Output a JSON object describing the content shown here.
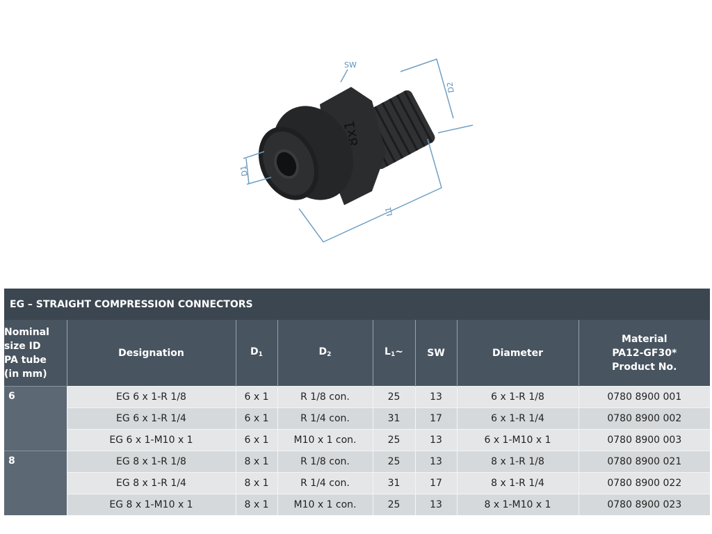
{
  "product_image": {
    "labels": {
      "sw": "SW",
      "d1": "D1",
      "d2": "D2",
      "l1": "L1",
      "marking": "8x1"
    },
    "dimension_color": "#5b8fb8",
    "body_color": "#2a2b2d"
  },
  "table": {
    "title": "EG – STRAIGHT COMPRESSION CONNECTORS",
    "headers": {
      "nominal": [
        "Nominal",
        "size ID",
        "PA tube",
        "(in mm)"
      ],
      "designation": "Designation",
      "d1": {
        "base": "D",
        "sub": "1"
      },
      "d2": {
        "base": "D",
        "sub": "2"
      },
      "l1": {
        "base": "L",
        "sub": "1",
        "suffix": "~"
      },
      "sw": "SW",
      "diameter": "Diameter",
      "material": [
        "Material",
        "PA12-GF30*",
        "Product No."
      ]
    },
    "groups": [
      {
        "size": "6",
        "rows": [
          {
            "designation": "EG 6 x 1-R 1/8",
            "d1": "6 x 1",
            "d2": "R 1/8 con.",
            "l1": "25",
            "sw": "13",
            "diameter": "6 x 1-R 1/8",
            "product_no": "0780 8900 001"
          },
          {
            "designation": "EG 6 x 1-R 1/4",
            "d1": "6 x 1",
            "d2": "R 1/4 con.",
            "l1": "31",
            "sw": "17",
            "diameter": "6 x 1-R 1/4",
            "product_no": "0780 8900 002"
          },
          {
            "designation": "EG 6 x 1-M10 x 1",
            "d1": "6 x 1",
            "d2": "M10 x 1 con.",
            "l1": "25",
            "sw": "13",
            "diameter": "6 x 1-M10 x 1",
            "product_no": "0780 8900 003"
          }
        ]
      },
      {
        "size": "8",
        "rows": [
          {
            "designation": "EG 8 x 1-R 1/8",
            "d1": "8 x 1",
            "d2": "R 1/8 con.",
            "l1": "25",
            "sw": "13",
            "diameter": "8 x 1-R 1/8",
            "product_no": "0780 8900 021"
          },
          {
            "designation": "EG 8 x 1-R 1/4",
            "d1": "8 x 1",
            "d2": "R 1/4 con.",
            "l1": "31",
            "sw": "17",
            "diameter": "8 x 1-R 1/4",
            "product_no": "0780 8900 022"
          },
          {
            "designation": "EG 8 x 1-M10 x 1",
            "d1": "8 x 1",
            "d2": "M10 x 1 con.",
            "l1": "25",
            "sw": "13",
            "diameter": "8 x 1-M10 x 1",
            "product_no": "0780 8900 023"
          }
        ]
      }
    ]
  }
}
